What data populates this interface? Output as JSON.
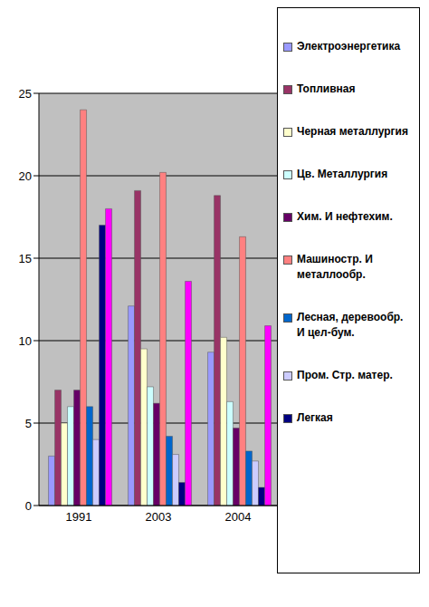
{
  "chart_data": {
    "type": "bar",
    "categories": [
      "1991",
      "2003",
      "2004"
    ],
    "series": [
      {
        "name": "Электроэнергетика",
        "color": "#9999ff",
        "values": [
          3,
          12.1,
          9.3
        ]
      },
      {
        "name": "Топливная",
        "color": "#993366",
        "values": [
          7,
          19.1,
          18.8
        ]
      },
      {
        "name": "Черная металлургия",
        "color": "#ffffcc",
        "values": [
          5,
          9.5,
          10.2
        ]
      },
      {
        "name": "Цв. Металлургия",
        "color": "#ccffff",
        "values": [
          6,
          7.2,
          6.3
        ]
      },
      {
        "name": "Хим. И нефтехим.",
        "color": "#660066",
        "values": [
          7,
          6.2,
          4.7
        ]
      },
      {
        "name": "Машиностр. И металлообр.",
        "color": "#ff8080",
        "values": [
          24,
          20.2,
          16.3
        ]
      },
      {
        "name": "Лесная, деревообр. И цел-бум.",
        "color": "#0066cc",
        "values": [
          6,
          4.2,
          3.3
        ]
      },
      {
        "name": "Пром. Стр. матер.",
        "color": "#ccccff",
        "values": [
          4,
          3.1,
          2.7
        ]
      },
      {
        "name": "Легкая",
        "color": "#000080",
        "values": [
          17,
          1.4,
          1.1
        ]
      },
      {
        "color": "#ff00ff",
        "values": [
          18,
          13.6,
          10.9
        ]
      }
    ],
    "ylim": [
      0,
      25
    ],
    "yticks": [
      0,
      5,
      10,
      15,
      20,
      25
    ],
    "grid": true,
    "legend": "right"
  }
}
